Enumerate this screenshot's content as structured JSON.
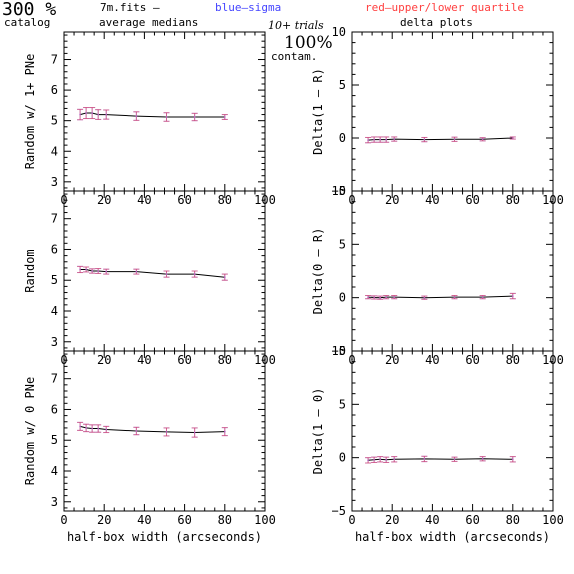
{
  "header": {
    "left_big": "300 %",
    "left_small": "catalog",
    "file": "7m.fits  –",
    "medians": "average medians",
    "blue_note": "blue–sigma",
    "red_note": "red–upper/lower quartile",
    "trials": "10+ trials",
    "contam_pct": "100%",
    "contam_label": "contam.",
    "delta_title": "delta plots"
  },
  "colors": {
    "blue": "#4444ff",
    "red": "#ff4040",
    "line": "#000000",
    "err": "#b060c8"
  },
  "chart_data": [
    {
      "type": "line",
      "panel": "left-top",
      "ylabel": "Random w/ 1+ PNe",
      "xlabel": "",
      "xlim": [
        0,
        100
      ],
      "ylim": [
        2.7,
        7.9
      ],
      "xticks": [
        0,
        20,
        40,
        60,
        80,
        100
      ],
      "yticks": [
        3,
        4,
        5,
        6,
        7,
        8
      ],
      "x": [
        8,
        11,
        14,
        17,
        21,
        36,
        51,
        65,
        80
      ],
      "y": [
        5.2,
        5.25,
        5.25,
        5.2,
        5.2,
        5.15,
        5.12,
        5.12,
        5.12
      ],
      "err": [
        0.17,
        0.18,
        0.18,
        0.16,
        0.15,
        0.14,
        0.14,
        0.12,
        0.08
      ],
      "show_xtick_labels": true
    },
    {
      "type": "line",
      "panel": "left-mid",
      "ylabel": "Random",
      "xlabel": "",
      "xlim": [
        0,
        100
      ],
      "ylim": [
        2.7,
        7.9
      ],
      "xticks": [
        0,
        20,
        40,
        60,
        80,
        100
      ],
      "yticks": [
        3,
        4,
        5,
        6,
        7,
        8
      ],
      "x": [
        8,
        11,
        14,
        17,
        21,
        36,
        51,
        65,
        80
      ],
      "y": [
        5.35,
        5.35,
        5.3,
        5.3,
        5.28,
        5.28,
        5.2,
        5.2,
        5.1
      ],
      "err": [
        0.1,
        0.08,
        0.07,
        0.08,
        0.08,
        0.08,
        0.1,
        0.1,
        0.1
      ],
      "show_xtick_labels": true
    },
    {
      "type": "line",
      "panel": "left-bot",
      "ylabel": "Random w/ 0 PNe",
      "xlabel": "half-box width (arcseconds)",
      "xlim": [
        0,
        100
      ],
      "ylim": [
        2.7,
        7.9
      ],
      "xticks": [
        0,
        20,
        40,
        60,
        80,
        100
      ],
      "yticks": [
        3,
        4,
        5,
        6,
        7,
        8
      ],
      "x": [
        8,
        11,
        14,
        17,
        21,
        36,
        51,
        65,
        80
      ],
      "y": [
        5.45,
        5.4,
        5.38,
        5.38,
        5.35,
        5.3,
        5.27,
        5.25,
        5.28
      ],
      "err": [
        0.13,
        0.12,
        0.12,
        0.12,
        0.1,
        0.12,
        0.13,
        0.15,
        0.13
      ],
      "show_xtick_labels": true
    },
    {
      "type": "line",
      "panel": "right-top",
      "ylabel": "Delta(1 – R)",
      "xlabel": "",
      "xlim": [
        0,
        100
      ],
      "ylim": [
        -5,
        10
      ],
      "xticks": [
        0,
        20,
        40,
        60,
        80,
        100
      ],
      "yticks": [
        -5,
        0,
        5,
        10
      ],
      "ytick_labels": [
        "−5",
        "0",
        "5",
        "10"
      ],
      "x": [
        8,
        11,
        14,
        17,
        21,
        36,
        51,
        65,
        80
      ],
      "y": [
        -0.2,
        -0.15,
        -0.15,
        -0.15,
        -0.1,
        -0.15,
        -0.12,
        -0.12,
        0.0
      ],
      "err": [
        0.25,
        0.25,
        0.25,
        0.25,
        0.2,
        0.2,
        0.2,
        0.15,
        0.1
      ],
      "show_xtick_labels": true
    },
    {
      "type": "line",
      "panel": "right-mid",
      "ylabel": "Delta(0 – R)",
      "xlabel": "",
      "xlim": [
        0,
        100
      ],
      "ylim": [
        -5,
        10
      ],
      "xticks": [
        0,
        20,
        40,
        60,
        80,
        100
      ],
      "yticks": [
        -5,
        0,
        5,
        10
      ],
      "ytick_labels": [
        "−5",
        "0",
        "5",
        "10"
      ],
      "x": [
        8,
        11,
        14,
        17,
        21,
        36,
        51,
        65,
        80
      ],
      "y": [
        0.05,
        0.02,
        0.0,
        0.05,
        0.05,
        0.0,
        0.05,
        0.05,
        0.15
      ],
      "err": [
        0.15,
        0.15,
        0.15,
        0.15,
        0.15,
        0.15,
        0.15,
        0.15,
        0.25
      ],
      "show_xtick_labels": true
    },
    {
      "type": "line",
      "panel": "right-bot",
      "ylabel": "Delta(1 – 0)",
      "xlabel": "half-box width (arcseconds)",
      "xlim": [
        0,
        100
      ],
      "ylim": [
        -5,
        10
      ],
      "xticks": [
        0,
        20,
        40,
        60,
        80,
        100
      ],
      "yticks": [
        -5,
        0,
        5,
        10
      ],
      "ytick_labels": [
        "−5",
        "0",
        "5",
        "10"
      ],
      "x": [
        8,
        11,
        14,
        17,
        21,
        36,
        51,
        65,
        80
      ],
      "y": [
        -0.25,
        -0.2,
        -0.15,
        -0.2,
        -0.15,
        -0.12,
        -0.15,
        -0.1,
        -0.15
      ],
      "err": [
        0.25,
        0.25,
        0.25,
        0.25,
        0.25,
        0.25,
        0.2,
        0.2,
        0.25
      ],
      "show_xtick_labels": true
    }
  ]
}
